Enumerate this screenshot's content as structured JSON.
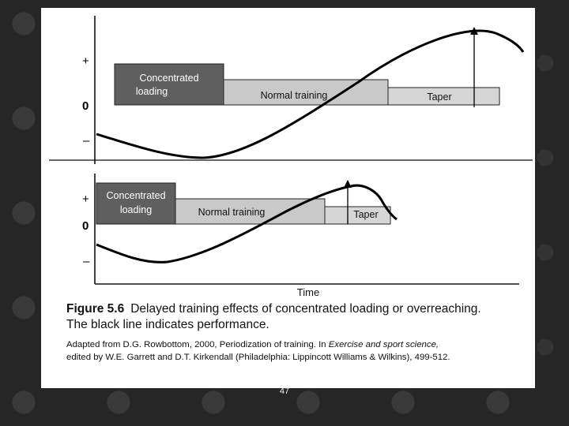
{
  "figure": {
    "axis_symbols": {
      "plus": "+",
      "zero": "0",
      "minus": "–"
    },
    "top_panel": {
      "concentrated": [
        "Concentrated",
        "loading"
      ],
      "normal": "Normal training",
      "taper": "Taper"
    },
    "bottom_panel": {
      "concentrated": [
        "Concentrated",
        "loading"
      ],
      "normal": "Normal training",
      "taper": "Taper"
    },
    "time_label": "Time",
    "colors": {
      "concentrated": "#5f5f5f",
      "normal": "#c9c9c9",
      "taper": "#d6d6d6"
    }
  },
  "caption": {
    "figure_label": "Figure 5.6",
    "line1": "Delayed training effects of concentrated loading or overreaching.",
    "line2": "The black line indicates performance.",
    "source_prefix": "Adapted from D.G. Rowbottom, 2000, Periodization of training. In ",
    "source_book": "Exercise and sport science,",
    "source_line2": "edited by W.E. Garrett and D.T. Kirkendall (Philadelphia: Lippincott Williams & Wilkins), 499-512."
  },
  "page_number": "47"
}
